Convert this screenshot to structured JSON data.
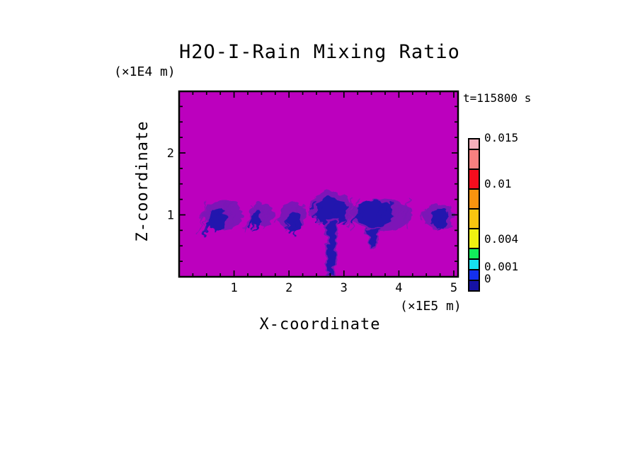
{
  "page": {
    "background": "#ffffff"
  },
  "chart_data": {
    "type": "heatmap",
    "title": "H2O-I-Rain Mixing Ratio",
    "time_label": "t=115800 s",
    "x_axis": {
      "label": "X-coordinate",
      "unit": "(×1E5 m)",
      "range": [
        0,
        5.08
      ],
      "major_ticks": [
        1,
        2,
        3,
        4,
        5
      ],
      "minor_step": 0.25
    },
    "z_axis": {
      "label": "Z-coordinate",
      "unit": "(×1E4 m)",
      "range": [
        0,
        2.99
      ],
      "major_ticks": [
        1,
        2
      ],
      "minor_step": 0.25
    },
    "field": {
      "background_color": "#BC00BE",
      "light_value_color": "#7A18B6",
      "dense_value_color": "#2114AE",
      "frame_color": "#000000"
    },
    "colorbar": {
      "levels_bottom_to_top": [
        0,
        0.001,
        0.002,
        0.003,
        0.004,
        0.006,
        0.008,
        0.01,
        0.012,
        0.014,
        0.015
      ],
      "colors_top_to_bottom": [
        "#F7AFBC",
        "#F88080",
        "#F50D1E",
        "#F8930F",
        "#F8C410",
        "#EFF211",
        "#12EF5B",
        "#16E1EF",
        "#1430EE",
        "#1612A4"
      ],
      "labels": [
        {
          "text": "0.015",
          "value": 0.015
        },
        {
          "text": "0.01",
          "value": 0.01
        },
        {
          "text": "0.004",
          "value": 0.004
        },
        {
          "text": "0.001",
          "value": 0.001
        },
        {
          "text": "0",
          "value": 0
        }
      ]
    },
    "rain_cells": [
      {
        "cx": 0.8,
        "cz": 1.0,
        "rx": 0.36,
        "rz": 0.24,
        "streaks": 22,
        "core": {
          "cx": 0.7,
          "cz": 0.92,
          "rx": 0.15,
          "rz": 0.18
        }
      },
      {
        "cx": 1.5,
        "cz": 1.0,
        "rx": 0.23,
        "rz": 0.18,
        "streaks": 12,
        "core": {
          "cx": 1.41,
          "cz": 0.94,
          "rx": 0.08,
          "rz": 0.14
        }
      },
      {
        "cx": 2.07,
        "cz": 0.98,
        "rx": 0.24,
        "rz": 0.24,
        "streaks": 14,
        "core": {
          "cx": 2.1,
          "cz": 0.88,
          "rx": 0.13,
          "rz": 0.17
        }
      },
      {
        "cx": 2.76,
        "cz": 1.1,
        "rx": 0.38,
        "rz": 0.28,
        "streaks": 24,
        "core": {
          "cx": 2.77,
          "cz": 1.05,
          "rx": 0.28,
          "rz": 0.24
        },
        "column": {
          "x_top": 2.78,
          "x_bot": 2.77,
          "z_top": 0.92,
          "z_bot": 0.0,
          "hw_top": 0.11,
          "hw_bot": 0.06
        }
      },
      {
        "cx": 3.7,
        "cz": 1.0,
        "rx": 0.55,
        "rz": 0.27,
        "streaks": 32,
        "core": {
          "cx": 3.55,
          "cz": 1.02,
          "rx": 0.35,
          "rz": 0.22
        },
        "column": {
          "x_top": 3.53,
          "x_bot": 3.52,
          "z_top": 0.8,
          "z_bot": 0.47,
          "hw_top": 0.14,
          "hw_bot": 0.04
        }
      },
      {
        "cx": 4.72,
        "cz": 0.97,
        "rx": 0.28,
        "rz": 0.22,
        "streaks": 14,
        "core": {
          "cx": 4.75,
          "cz": 0.95,
          "rx": 0.16,
          "rz": 0.17
        }
      }
    ]
  }
}
